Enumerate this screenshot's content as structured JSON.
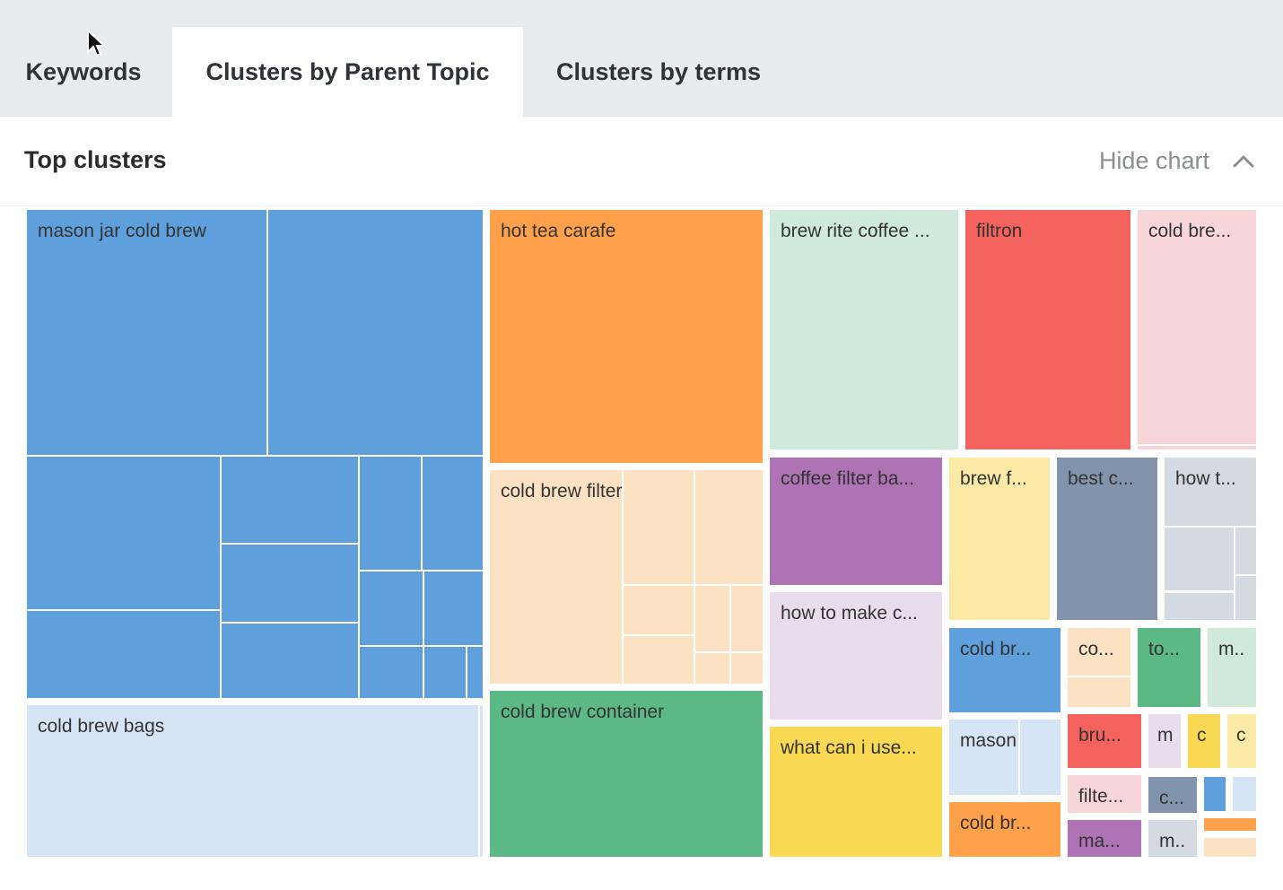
{
  "tabs": [
    {
      "label": "Keywords"
    },
    {
      "label": "Clusters by Parent Topic",
      "active": true
    },
    {
      "label": "Clusters by terms"
    }
  ],
  "section": {
    "title": "Top clusters",
    "hide_chart": "Hide chart"
  },
  "colors": {
    "blue": "#5fa0dc",
    "lightblue": "#d6e5f5",
    "orange": "#ffa04b",
    "peach": "#fde1c3",
    "green": "#5cb884",
    "mint": "#cfeadd",
    "red": "#f4625e",
    "pink": "#f8d5d6",
    "purple": "#ad73b4",
    "lavender": "#e8dced",
    "yellow": "#f9d853",
    "lightyellow": "#fbe9a6",
    "slate": "#8194ab",
    "lightgray": "#d3dae2"
  },
  "clusters": [
    {
      "label": "mason jar cold brew",
      "color": "blue"
    },
    {
      "label": "cold brew bags",
      "color": "lightblue"
    },
    {
      "label": "hot tea carafe",
      "color": "orange"
    },
    {
      "label": "cold brew filter",
      "color": "peach"
    },
    {
      "label": "cold brew container",
      "color": "green"
    },
    {
      "label": "brew rite coffee ...",
      "color": "mint"
    },
    {
      "label": "filtron",
      "color": "red"
    },
    {
      "label": "cold bre...",
      "color": "pink"
    },
    {
      "label": "coffee filter ba...",
      "color": "purple"
    },
    {
      "label": "how to make c...",
      "color": "lavender"
    },
    {
      "label": "what can i use...",
      "color": "yellow"
    },
    {
      "label": "brew f...",
      "color": "lightyellow"
    },
    {
      "label": "best c...",
      "color": "slate"
    },
    {
      "label": "how t...",
      "color": "lightgray"
    },
    {
      "label": "cold br...",
      "color": "blue"
    },
    {
      "label": "mason j...",
      "color": "lightblue"
    },
    {
      "label": "cold br...",
      "color": "orange"
    },
    {
      "label": "co...",
      "color": "peach"
    },
    {
      "label": "to...",
      "color": "green"
    },
    {
      "label": "m..",
      "color": "mint"
    },
    {
      "label": "bru...",
      "color": "red"
    },
    {
      "label": "m",
      "color": "lavender"
    },
    {
      "label": "c",
      "color": "yellow"
    },
    {
      "label": "c",
      "color": "lightyellow"
    },
    {
      "label": "filte...",
      "color": "pink"
    },
    {
      "label": "ma...",
      "color": "purple"
    },
    {
      "label": "c...",
      "color": "slate"
    },
    {
      "label": "m..",
      "color": "lightgray"
    },
    {
      "label": "",
      "color": "blue"
    },
    {
      "label": "",
      "color": "lightblue"
    },
    {
      "label": "",
      "color": "orange"
    },
    {
      "label": "",
      "color": "peach"
    }
  ]
}
